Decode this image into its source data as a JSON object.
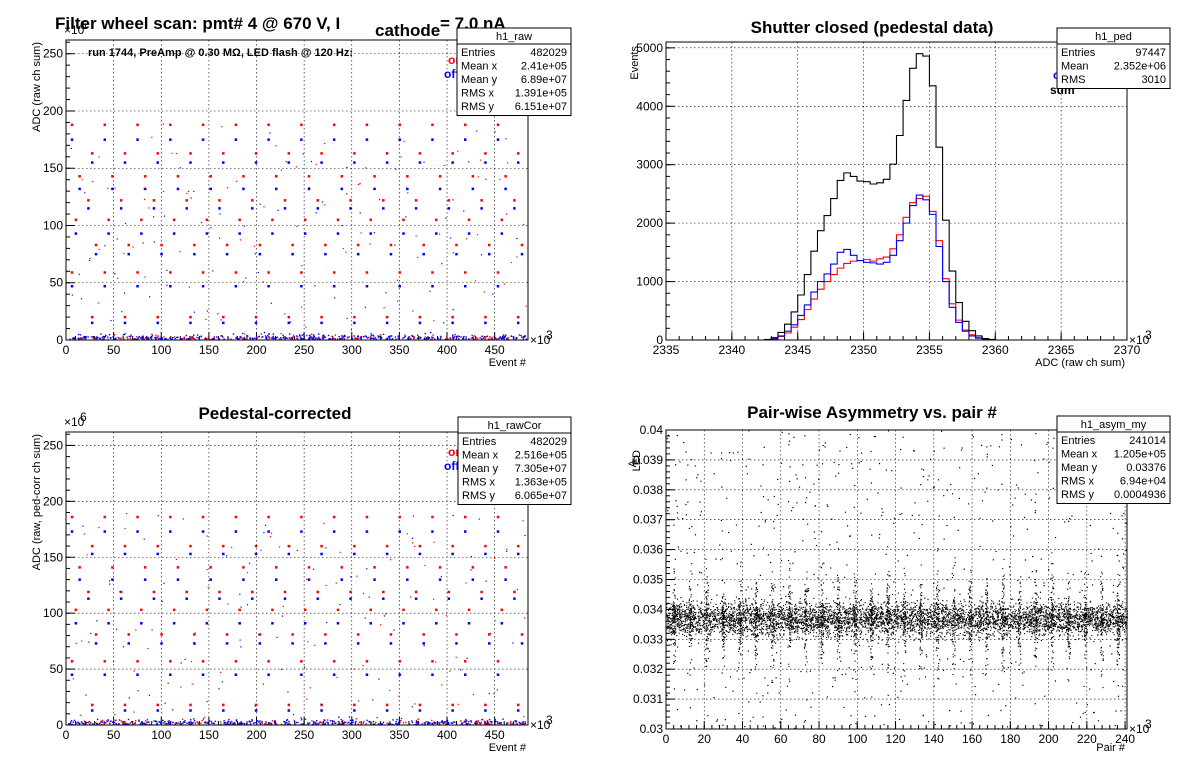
{
  "chart_data": [
    {
      "id": "h1_raw",
      "type": "scatter",
      "title": "Filter wheel scan: pmt#   4 @   670 V, I",
      "title_sub": "cathode",
      "title_tail": "= 7.0 nA",
      "annotation": "run 1744, PreAmp @ 0.30 MΩ, LED flash @  120 Hz:",
      "xlabel": "Event #",
      "ylabel": "ADC (raw ch sum)",
      "x_exponent": "×10",
      "x_exponent_power": "3",
      "y_exponent": "×10",
      "y_exponent_power": "6",
      "xlim": [
        0,
        485
      ],
      "ylim": [
        0,
        262
      ],
      "xticks": [
        "0",
        "50",
        "100",
        "150",
        "200",
        "250",
        "300",
        "350",
        "400",
        "450"
      ],
      "yticks": [
        "0",
        "50",
        "100",
        "150",
        "200",
        "250"
      ],
      "grid": true,
      "legend": [
        {
          "name": "on",
          "color": "#ff0000"
        },
        {
          "name": "off",
          "color": "#0000ff"
        }
      ],
      "on_levels": [
        188,
        163,
        143,
        122,
        105,
        83,
        59,
        20
      ],
      "off_levels": [
        175,
        155,
        132,
        115,
        93,
        75,
        47,
        15
      ],
      "step_period": 17.2,
      "stats": {
        "name": "h1_raw",
        "rows": [
          [
            "Entries",
            "482029"
          ],
          [
            "Mean x",
            "2.41e+05"
          ],
          [
            "Mean y",
            "6.89e+07"
          ],
          [
            "RMS x",
            "1.391e+05"
          ],
          [
            "RMS y",
            "6.151e+07"
          ]
        ]
      }
    },
    {
      "id": "h1_ped",
      "type": "line",
      "title": "Shutter closed (pedestal data)",
      "xlabel": "ADC (raw ch sum)",
      "ylabel": "Events",
      "x_exponent": "×10",
      "x_exponent_power": "3",
      "xlim": [
        2335,
        2370
      ],
      "ylim": [
        0,
        5100
      ],
      "xticks": [
        "2335",
        "2340",
        "2345",
        "2350",
        "2355",
        "2360",
        "2365",
        "2370"
      ],
      "yticks": [
        "0",
        "1000",
        "2000",
        "3000",
        "4000",
        "5000"
      ],
      "grid": true,
      "legend": [
        {
          "name": "on",
          "color": "#ff0000"
        },
        {
          "name": "off",
          "color": "#0000ff"
        },
        {
          "name": "sum",
          "color": "#000000"
        }
      ],
      "bin_width": 0.5,
      "x_start": 2342,
      "series": [
        {
          "name": "on",
          "color": "#ff0000",
          "values": [
            0,
            5,
            20,
            60,
            120,
            220,
            350,
            520,
            700,
            870,
            1000,
            1120,
            1230,
            1310,
            1350,
            1360,
            1380,
            1350,
            1390,
            1420,
            1560,
            1800,
            2100,
            2350,
            2420,
            2460,
            2200,
            1700,
            1050,
            620,
            340,
            170,
            90,
            40,
            15,
            5,
            0
          ]
        },
        {
          "name": "off",
          "color": "#0000ff",
          "values": [
            0,
            5,
            20,
            70,
            150,
            260,
            420,
            600,
            820,
            1000,
            1130,
            1300,
            1500,
            1550,
            1450,
            1360,
            1330,
            1320,
            1300,
            1330,
            1450,
            1700,
            2000,
            2300,
            2480,
            2400,
            2150,
            1600,
            1000,
            560,
            300,
            150,
            70,
            30,
            10,
            5,
            0
          ]
        },
        {
          "name": "sum",
          "color": "#000000",
          "values": [
            0,
            10,
            40,
            130,
            270,
            480,
            770,
            1120,
            1520,
            1870,
            2130,
            2420,
            2730,
            2860,
            2800,
            2720,
            2710,
            2670,
            2690,
            2750,
            3010,
            3500,
            4100,
            4650,
            4900,
            4860,
            4350,
            3300,
            2050,
            1180,
            640,
            320,
            160,
            70,
            25,
            10,
            0
          ]
        }
      ],
      "stats": {
        "name": "h1_ped",
        "rows": [
          [
            "Entries",
            "97447"
          ],
          [
            "Mean",
            "2.352e+06"
          ],
          [
            "RMS",
            "3010"
          ]
        ]
      }
    },
    {
      "id": "h1_rawCor",
      "type": "scatter",
      "title": "Pedestal-corrected",
      "xlabel": "Event #",
      "ylabel": "ADC (raw, ped-corr ch sum)",
      "x_exponent": "×10",
      "x_exponent_power": "3",
      "y_exponent": "×10",
      "y_exponent_power": "6",
      "xlim": [
        0,
        485
      ],
      "ylim": [
        0,
        262
      ],
      "xticks": [
        "0",
        "50",
        "100",
        "150",
        "200",
        "250",
        "300",
        "350",
        "400",
        "450"
      ],
      "yticks": [
        "0",
        "50",
        "100",
        "150",
        "200",
        "250"
      ],
      "grid": true,
      "legend": [
        {
          "name": "on",
          "color": "#ff0000"
        },
        {
          "name": "off",
          "color": "#0000ff"
        }
      ],
      "on_levels": [
        186,
        160,
        141,
        119,
        103,
        81,
        57,
        18
      ],
      "off_levels": [
        173,
        153,
        130,
        113,
        91,
        73,
        45,
        13
      ],
      "step_period": 17.2,
      "stats": {
        "name": "h1_rawCor",
        "rows": [
          [
            "Entries",
            "482029"
          ],
          [
            "Mean x",
            "2.516e+05"
          ],
          [
            "Mean y",
            "7.305e+07"
          ],
          [
            "RMS x",
            "1.363e+05"
          ],
          [
            "RMS y",
            "6.065e+07"
          ]
        ]
      }
    },
    {
      "id": "h1_asym_my",
      "type": "scatter",
      "title": "Pair-wise Asymmetry vs. pair #",
      "xlabel": "Pair #",
      "ylabel": "A",
      "ylabel_sub": "LED",
      "x_exponent": "×10",
      "x_exponent_power": "3",
      "xlim": [
        0,
        241
      ],
      "ylim": [
        0.03,
        0.04
      ],
      "xticks": [
        "0",
        "20",
        "40",
        "60",
        "80",
        "100",
        "120",
        "140",
        "160",
        "180",
        "200",
        "220",
        "240"
      ],
      "yticks": [
        "0.03",
        "0.031",
        "0.032",
        "0.033",
        "0.034",
        "0.035",
        "0.036",
        "0.037",
        "0.038",
        "0.039",
        "0.04"
      ],
      "grid": true,
      "center": 0.0337,
      "spike_period": 8.6,
      "stats": {
        "name": "h1_asym_my",
        "rows": [
          [
            "Entries",
            "241014"
          ],
          [
            "Mean x",
            "1.205e+05"
          ],
          [
            "Mean y",
            "0.03376"
          ],
          [
            "RMS x",
            "6.94e+04"
          ],
          [
            "RMS y",
            "0.0004936"
          ]
        ]
      }
    }
  ]
}
